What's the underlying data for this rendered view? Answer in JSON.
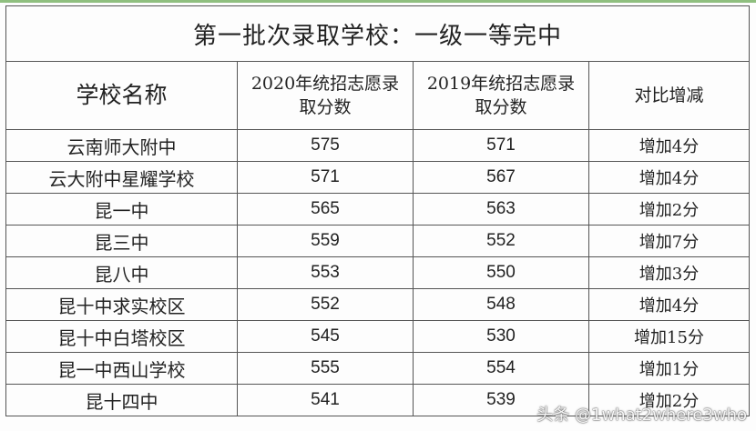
{
  "table": {
    "title": "第一批次录取学校：一级一等完中",
    "header": [
      "学校名称",
      "2020年统招志愿录取分数",
      "2019年统招志愿录取分数",
      "对比增减"
    ],
    "rows": [
      [
        "云南师大附中",
        "575",
        "571",
        "增加4分"
      ],
      [
        "云大附中星耀学校",
        "571",
        "567",
        "增加4分"
      ],
      [
        "昆一中",
        "565",
        "563",
        "增加2分"
      ],
      [
        "昆三中",
        "559",
        "552",
        "增加7分"
      ],
      [
        "昆八中",
        "553",
        "550",
        "增加3分"
      ],
      [
        "昆十中求实校区",
        "552",
        "548",
        "增加4分"
      ],
      [
        "昆十中白塔校区",
        "545",
        "530",
        "增加15分"
      ],
      [
        "昆一中西山学校",
        "555",
        "554",
        "增加1分"
      ],
      [
        "昆十四中",
        "541",
        "539",
        "增加2分"
      ]
    ]
  },
  "watermark": "头条 @1what2where3who"
}
